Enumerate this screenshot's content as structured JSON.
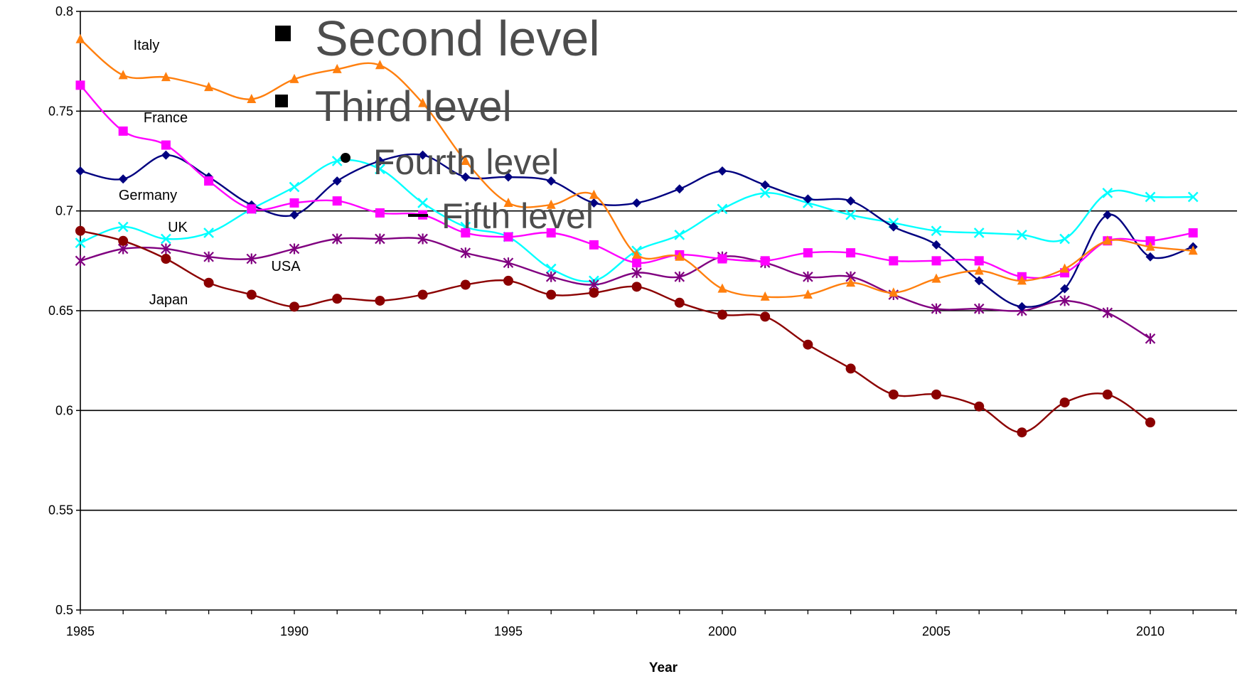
{
  "chart_data": {
    "type": "line",
    "xlabel": "Year",
    "ylabel": "",
    "xlim": [
      1985,
      2012
    ],
    "ylim": [
      0.5,
      0.8
    ],
    "x_ticks": [
      "1985",
      "1990",
      "1995",
      "2000",
      "2005",
      "2010"
    ],
    "y_ticks": [
      "0.5",
      "0.55",
      "0.6",
      "0.65",
      "0.7",
      "0.75",
      "0.8"
    ],
    "grid": "horizontal",
    "series": [
      {
        "name": "Italy",
        "color": "#ff7f0e",
        "marker": "triangle",
        "x": [
          1985,
          1986,
          1987,
          1988,
          1989,
          1990,
          1991,
          1992,
          1993,
          1994,
          1995,
          1996,
          1997,
          1998,
          1999,
          2000,
          2001,
          2002,
          2003,
          2004,
          2005,
          2006,
          2007,
          2008,
          2009,
          2010,
          2011
        ],
        "y": [
          0.786,
          0.768,
          0.767,
          0.762,
          0.756,
          0.766,
          0.771,
          0.773,
          0.754,
          0.725,
          0.704,
          0.703,
          0.708,
          0.678,
          0.677,
          0.661,
          0.657,
          0.658,
          0.664,
          0.659,
          0.666,
          0.67,
          0.665,
          0.671,
          0.685,
          0.682,
          0.68
        ]
      },
      {
        "name": "France",
        "color": "#ff00ff",
        "marker": "square",
        "x": [
          1985,
          1986,
          1987,
          1988,
          1989,
          1990,
          1991,
          1992,
          1993,
          1994,
          1995,
          1996,
          1997,
          1998,
          1999,
          2000,
          2001,
          2002,
          2003,
          2004,
          2005,
          2006,
          2007,
          2008,
          2009,
          2010,
          2011
        ],
        "y": [
          0.763,
          0.74,
          0.733,
          0.715,
          0.701,
          0.704,
          0.705,
          0.699,
          0.698,
          0.689,
          0.687,
          0.689,
          0.683,
          0.674,
          0.678,
          0.676,
          0.675,
          0.679,
          0.679,
          0.675,
          0.675,
          0.675,
          0.667,
          0.669,
          0.685,
          0.685,
          0.689
        ]
      },
      {
        "name": "Germany",
        "color": "#000080",
        "marker": "diamond",
        "x": [
          1985,
          1986,
          1987,
          1988,
          1989,
          1990,
          1991,
          1992,
          1993,
          1994,
          1995,
          1996,
          1997,
          1998,
          1999,
          2000,
          2001,
          2002,
          2003,
          2004,
          2005,
          2006,
          2007,
          2008,
          2009,
          2010,
          2011
        ],
        "y": [
          0.72,
          0.716,
          0.728,
          0.717,
          0.703,
          0.698,
          0.715,
          0.725,
          0.728,
          0.717,
          0.717,
          0.715,
          0.704,
          0.704,
          0.711,
          0.72,
          0.713,
          0.706,
          0.705,
          0.692,
          0.683,
          0.665,
          0.652,
          0.661,
          0.698,
          0.677,
          0.682
        ]
      },
      {
        "name": "UK",
        "color": "#00ffff",
        "marker": "x",
        "x": [
          1985,
          1986,
          1987,
          1988,
          1989,
          1990,
          1991,
          1992,
          1993,
          1994,
          1995,
          1996,
          1997,
          1998,
          1999,
          2000,
          2001,
          2002,
          2003,
          2004,
          2005,
          2006,
          2007,
          2008,
          2009,
          2010,
          2011
        ],
        "y": [
          0.684,
          0.692,
          0.686,
          0.689,
          0.701,
          0.712,
          0.725,
          0.721,
          0.704,
          0.692,
          0.687,
          0.671,
          0.665,
          0.68,
          0.688,
          0.701,
          0.709,
          0.704,
          0.698,
          0.694,
          0.69,
          0.689,
          0.688,
          0.686,
          0.709,
          0.707,
          0.707
        ]
      },
      {
        "name": "USA",
        "color": "#800080",
        "marker": "star",
        "x": [
          1985,
          1986,
          1987,
          1988,
          1989,
          1990,
          1991,
          1992,
          1993,
          1994,
          1995,
          1996,
          1997,
          1998,
          1999,
          2000,
          2001,
          2002,
          2003,
          2004,
          2005,
          2006,
          2007,
          2008,
          2009,
          2010
        ],
        "y": [
          0.675,
          0.681,
          0.681,
          0.677,
          0.676,
          0.681,
          0.686,
          0.686,
          0.686,
          0.679,
          0.674,
          0.667,
          0.663,
          0.669,
          0.667,
          0.677,
          0.674,
          0.667,
          0.667,
          0.658,
          0.651,
          0.651,
          0.65,
          0.655,
          0.649,
          0.636
        ]
      },
      {
        "name": "Japan",
        "color": "#8b0000",
        "marker": "circle",
        "x": [
          1985,
          1986,
          1987,
          1988,
          1989,
          1990,
          1991,
          1992,
          1993,
          1994,
          1995,
          1996,
          1997,
          1998,
          1999,
          2000,
          2001,
          2002,
          2003,
          2004,
          2005,
          2006,
          2007,
          2008,
          2009,
          2010
        ],
        "y": [
          0.69,
          0.685,
          0.676,
          0.664,
          0.658,
          0.652,
          0.656,
          0.655,
          0.658,
          0.663,
          0.665,
          0.658,
          0.659,
          0.662,
          0.654,
          0.648,
          0.647,
          0.633,
          0.621,
          0.608,
          0.608,
          0.602,
          0.589,
          0.604,
          0.608,
          0.594
        ]
      }
    ],
    "overlay_text": [
      {
        "text": "Second level",
        "bullet": "■"
      },
      {
        "text": "Third level",
        "bullet": "■"
      },
      {
        "text": "Fourth level",
        "bullet": "●"
      },
      {
        "text": "Fifth level",
        "bullet": "–"
      }
    ]
  }
}
